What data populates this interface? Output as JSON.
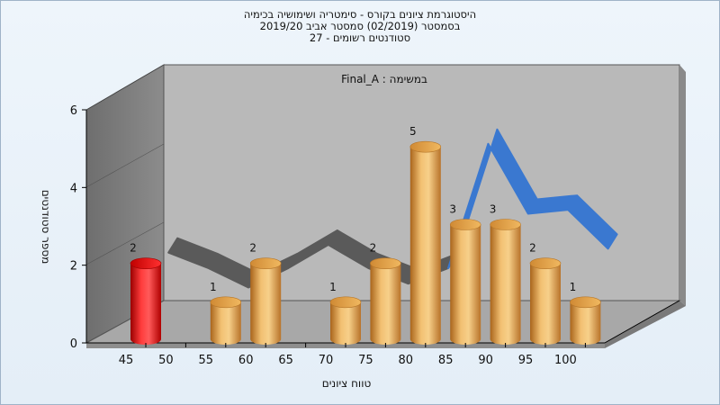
{
  "chart_data": {
    "type": "bar",
    "title_lines": [
      "היסטוגרמת ציונים בקורס - סימטריה ושימושיה בכימיה",
      "בסמסטר  (02/2019)  סמסטר אביב 2019/20",
      "סטודנטים רשומים - 27"
    ],
    "annotation": "במשימה : Final_A",
    "xlabel": "טווח ציונים",
    "ylabel": "מספר סטודנטים",
    "x_ticks": [
      "45",
      "50",
      "55",
      "60",
      "65",
      "70",
      "75",
      "80",
      "85",
      "90",
      "95",
      "100"
    ],
    "y_ticks": [
      "0",
      "2",
      "4",
      "6"
    ],
    "ylim": [
      0,
      6
    ],
    "bars": [
      {
        "x": 45,
        "value": 2,
        "color": "#e01818"
      },
      {
        "x": 55,
        "value": 1,
        "color": "#e09a3a"
      },
      {
        "x": 60,
        "value": 2,
        "color": "#e09a3a"
      },
      {
        "x": 70,
        "value": 1,
        "color": "#e09a3a"
      },
      {
        "x": 75,
        "value": 2,
        "color": "#e09a3a"
      },
      {
        "x": 80,
        "value": 5,
        "color": "#e09a3a"
      },
      {
        "x": 85,
        "value": 3,
        "color": "#e09a3a"
      },
      {
        "x": 90,
        "value": 3,
        "color": "#e09a3a"
      },
      {
        "x": 95,
        "value": 2,
        "color": "#e09a3a"
      },
      {
        "x": 100,
        "value": 1,
        "color": "#e09a3a"
      }
    ],
    "curve": {
      "x": [
        47.5,
        52.5,
        57.5,
        62.5,
        67.5,
        72.5,
        77.5,
        82.5,
        87.5,
        92.5,
        97.5,
        102.5
      ],
      "values": [
        2,
        1.6,
        1.1,
        1.6,
        2.2,
        1.6,
        1.2,
        1.6,
        4.8,
        3.0,
        3.1,
        2.1
      ],
      "gray_color": "#5a5a5a",
      "blue_color": "#3a78d0"
    },
    "wall_color": "#7f7f7f",
    "back_color": "#b9b9b9",
    "floor_color": "#a8a8a8"
  }
}
